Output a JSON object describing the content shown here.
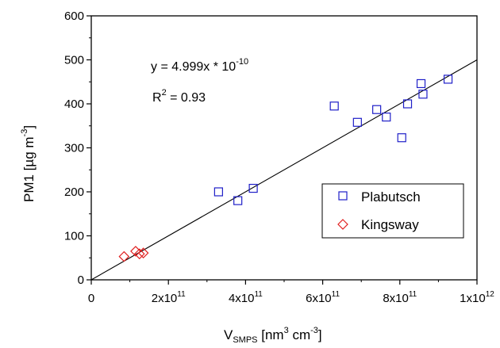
{
  "chart_data": {
    "type": "scatter",
    "xlabel": {
      "base": "V",
      "sub": "SMPS",
      "rest": [
        " [nm",
        "3",
        " cm",
        "-3",
        "]"
      ]
    },
    "ylabel": "PM1 [µg m-3]",
    "ylabel_parts": [
      "PM1 [",
      "µ",
      "g m",
      "-3",
      "]"
    ],
    "xlim": [
      0,
      1000000000000.0
    ],
    "ylim": [
      0,
      600
    ],
    "x_ticks": [
      {
        "value": 0,
        "label": "0"
      },
      {
        "value": 200000000000.0,
        "mant": "2x10",
        "exp": "11"
      },
      {
        "value": 400000000000.0,
        "mant": "4x10",
        "exp": "11"
      },
      {
        "value": 600000000000.0,
        "mant": "6x10",
        "exp": "11"
      },
      {
        "value": 800000000000.0,
        "mant": "8x10",
        "exp": "11"
      },
      {
        "value": 1000000000000.0,
        "mant": "1x10",
        "exp": "12"
      }
    ],
    "y_ticks": [
      {
        "value": 0,
        "label": "0"
      },
      {
        "value": 100,
        "label": "100"
      },
      {
        "value": 200,
        "label": "200"
      },
      {
        "value": 300,
        "label": "300"
      },
      {
        "value": 400,
        "label": "400"
      },
      {
        "value": 500,
        "label": "500"
      },
      {
        "value": 600,
        "label": "600"
      }
    ],
    "series": [
      {
        "name": "Plabutsch",
        "marker": "square",
        "color": "#1f1fc8",
        "points": [
          [
            330000000000.0,
            200
          ],
          [
            380000000000.0,
            180
          ],
          [
            420000000000.0,
            208
          ],
          [
            630000000000.0,
            395
          ],
          [
            690000000000.0,
            358
          ],
          [
            740000000000.0,
            387
          ],
          [
            765000000000.0,
            370
          ],
          [
            805000000000.0,
            323
          ],
          [
            820000000000.0,
            400
          ],
          [
            855000000000.0,
            446
          ],
          [
            860000000000.0,
            422
          ],
          [
            925000000000.0,
            456
          ]
        ]
      },
      {
        "name": "Kingsway",
        "marker": "diamond",
        "color": "#e02020",
        "points": [
          [
            85000000000.0,
            53
          ],
          [
            115000000000.0,
            65
          ],
          [
            125000000000.0,
            59
          ],
          [
            135000000000.0,
            61
          ]
        ]
      }
    ],
    "fit": {
      "slope": 5e-10,
      "x_from": 0,
      "x_to": 1000000000000.0
    },
    "annotations": {
      "equation": {
        "lead": "y = 4.999x * 10",
        "exp": "-10"
      },
      "r2": {
        "lead": "R",
        "exp": "2",
        "rest": " = 0.93"
      }
    },
    "legend_placement": "lower-right",
    "grid": false
  }
}
